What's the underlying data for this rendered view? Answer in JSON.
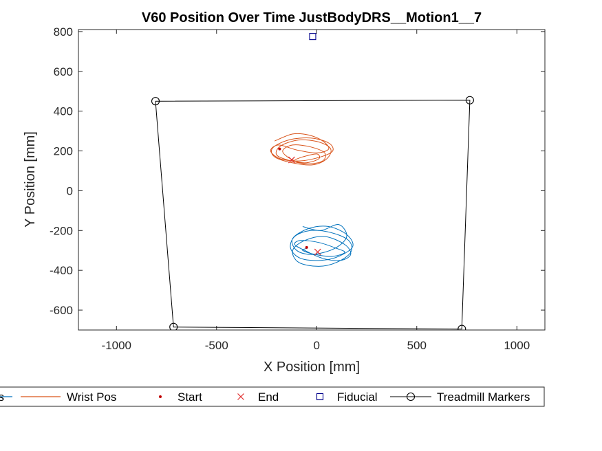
{
  "chart_data": {
    "type": "line",
    "title": "V60 Position Over Time JustBodyDRS__Motion1__7",
    "xlabel": "X Position [mm]",
    "ylabel": "Y Position [mm]",
    "xlim": [
      -1190,
      1140
    ],
    "ylim": [
      -700,
      810
    ],
    "xticks": [
      -1000,
      -500,
      0,
      500,
      1000
    ],
    "xtick_labels": [
      "-1000",
      "-500",
      "0",
      "500",
      "1000"
    ],
    "yticks": [
      -600,
      -400,
      -200,
      0,
      200,
      400,
      600,
      800
    ],
    "ytick_labels": [
      "-600",
      "-400",
      "-200",
      "0",
      "200",
      "400",
      "600",
      "800"
    ],
    "grid": false,
    "legend_placement": "below plot, horizontal",
    "series": [
      {
        "name": "Pos",
        "legend_label": "os",
        "kind": "trajectory",
        "color": "#0072BD",
        "x": [
          -70,
          20,
          110,
          150,
          90,
          -20,
          -100,
          -120,
          -40,
          60,
          150,
          180,
          110,
          20,
          -80,
          -130,
          -110,
          -30,
          70,
          160,
          170,
          100,
          10,
          -90,
          -120,
          -60,
          40,
          140,
          170,
          120,
          30,
          -60,
          -110,
          -80,
          10,
          100,
          140,
          80,
          -10,
          -70,
          -50
        ],
        "y": [
          -180,
          -200,
          -170,
          -230,
          -290,
          -320,
          -300,
          -240,
          -190,
          -180,
          -220,
          -280,
          -330,
          -350,
          -340,
          -290,
          -230,
          -200,
          -210,
          -250,
          -310,
          -360,
          -380,
          -360,
          -300,
          -250,
          -230,
          -270,
          -320,
          -350,
          -340,
          -300,
          -270,
          -250,
          -260,
          -290,
          -310,
          -330,
          -320,
          -300,
          -290
        ]
      },
      {
        "name": "Wrist Pos",
        "legend_label": "Wrist Pos",
        "kind": "trajectory",
        "color": "#D95319",
        "x": [
          -210,
          -120,
          -40,
          30,
          60,
          0,
          -100,
          -190,
          -230,
          -180,
          -80,
          20,
          80,
          60,
          -30,
          -140,
          -220,
          -210,
          -120,
          -20,
          50,
          70,
          10,
          -90,
          -180,
          -200,
          -130,
          -40,
          30,
          40,
          -30,
          -120,
          -170,
          -130,
          -60,
          10,
          0,
          -70,
          -110
        ],
        "y": [
          250,
          285,
          280,
          250,
          210,
          190,
          205,
          230,
          200,
          160,
          150,
          170,
          200,
          240,
          265,
          255,
          215,
          170,
          140,
          130,
          160,
          210,
          245,
          255,
          225,
          180,
          150,
          135,
          150,
          190,
          220,
          230,
          200,
          160,
          140,
          160,
          185,
          170,
          155
        ]
      },
      {
        "name": "Start",
        "legend_label": "Start",
        "kind": "markers",
        "marker": "dot",
        "color": "#C00000",
        "points": [
          [
            -185,
            210
          ],
          [
            -50,
            -285
          ]
        ]
      },
      {
        "name": "End",
        "legend_label": "End",
        "kind": "markers",
        "marker": "x",
        "color": "#E03030",
        "points": [
          [
            -125,
            155
          ],
          [
            5,
            -308
          ]
        ]
      },
      {
        "name": "Fiducial",
        "legend_label": "Fiducial",
        "kind": "markers",
        "marker": "square",
        "color": "#00008B",
        "points": [
          [
            -20,
            775
          ]
        ]
      },
      {
        "name": "Treadmill Markers",
        "legend_label": "Treadmill Markers",
        "kind": "polygon",
        "marker": "circle",
        "color": "#000000",
        "points": [
          [
            -805,
            450
          ],
          [
            765,
            455
          ],
          [
            725,
            -695
          ],
          [
            -715,
            -685
          ]
        ]
      }
    ]
  }
}
